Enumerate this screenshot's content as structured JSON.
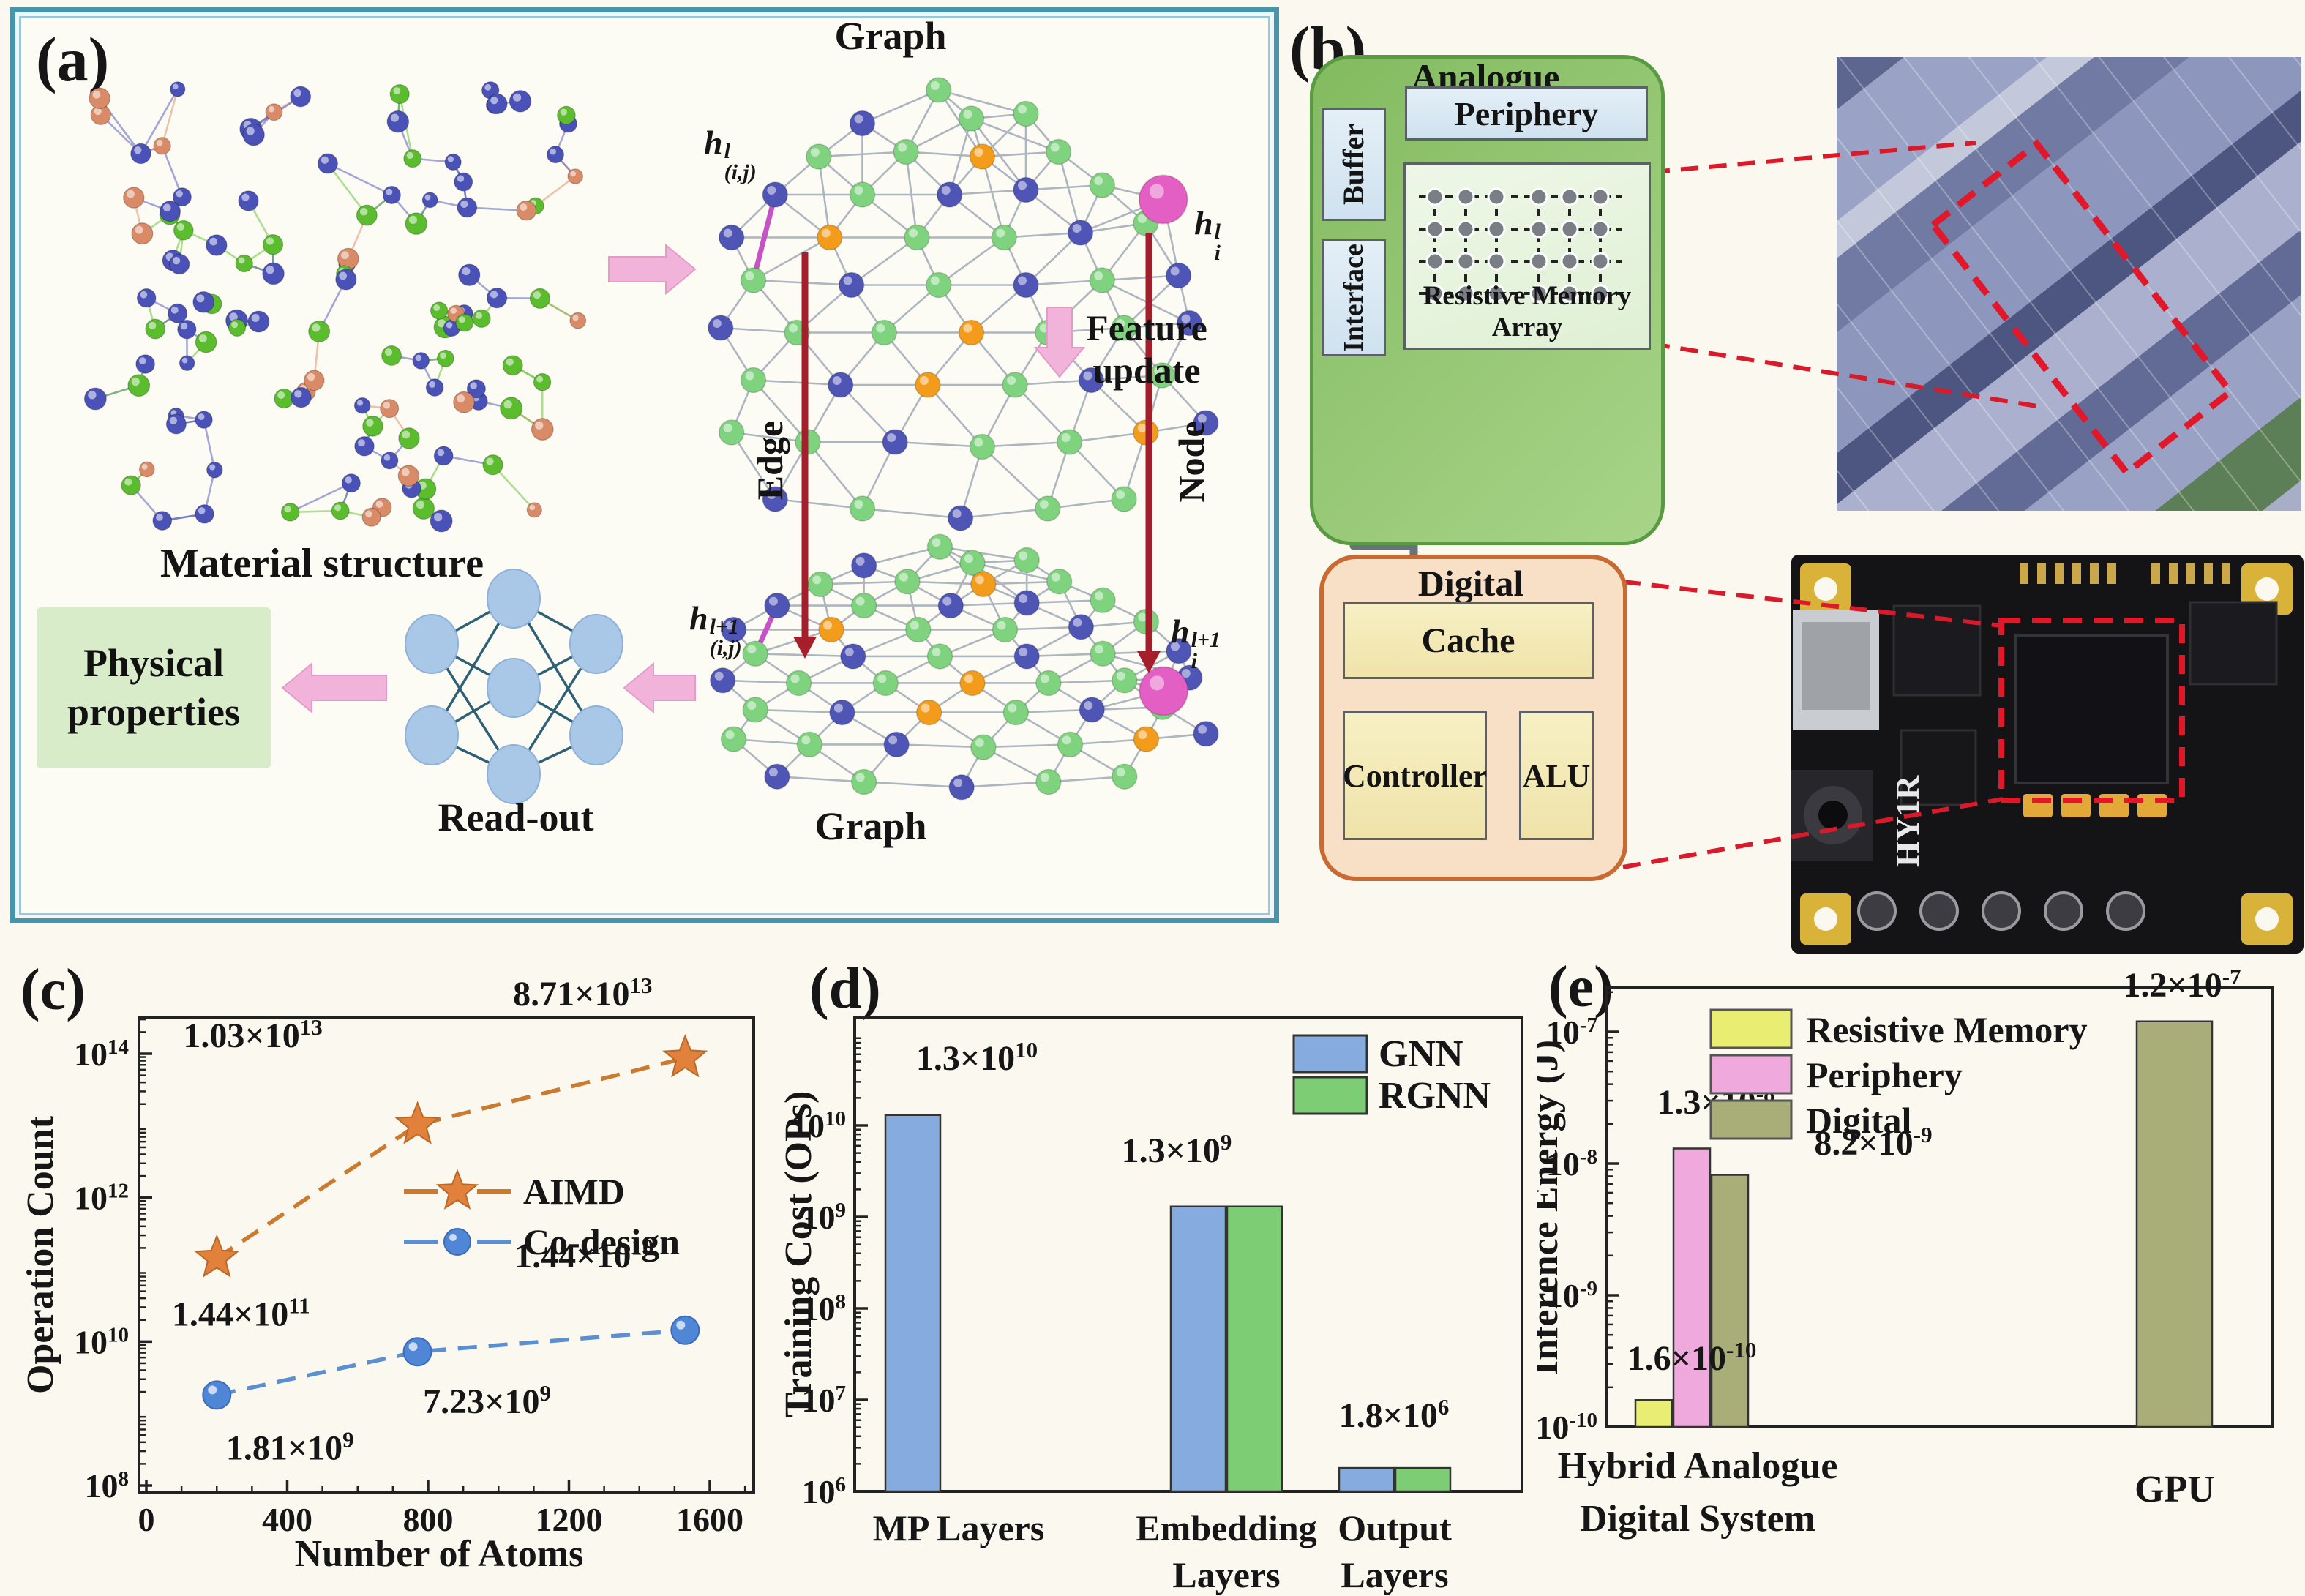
{
  "colors": {
    "panel_border": "#4795ad",
    "pink_arrow": "#f2b3da",
    "red_connector": "#b5242b",
    "red_arrow": "#a41f2b",
    "red_dashed": "#d91a2a",
    "gray_arrow": "#68737e",
    "node_green": "#7fd37f",
    "node_blue": "#4f55b5",
    "node_orange": "#f39c1c",
    "node_pink": "#e35fc4",
    "atom_blue": "#4a52b8",
    "atom_green": "#5bbd2e",
    "atom_salmon": "#d98a66",
    "cluster_edge": "#adb6c0",
    "magenta_edge": "#c653c6",
    "nn_node": "#a9c7e6",
    "nn_edge": "#2e6076"
  },
  "panel_a": {
    "label": "(a)",
    "material_caption": "Material structure",
    "graph_top_caption": "Graph",
    "graph_bottom_caption": "Graph",
    "edge_label": "Edge",
    "node_label": "Node",
    "feature_update_line1": "Feature",
    "feature_update_line2": "update",
    "readout_caption": "Read-out",
    "physical_line1": "Physical",
    "physical_line2": "properties",
    "h_labels": {
      "edge_top": {
        "base": "h",
        "sup": "l",
        "sub": "(i,j)"
      },
      "node_top": {
        "base": "h",
        "sup": "l",
        "sub": "i"
      },
      "edge_bottom": {
        "base": "h",
        "sup": "l+1",
        "sub": "(i,j)"
      },
      "node_bottom": {
        "base": "h",
        "sup": "l+1",
        "sub": "i"
      }
    }
  },
  "panel_b": {
    "label": "(b)",
    "analogue_title": "Analogue",
    "periphery": "Periphery",
    "buffer": "Buffer",
    "interface": "Interface",
    "array_caption": "Resistive Memory Array",
    "digital_title": "Digital",
    "cache": "Cache",
    "controller": "Controller",
    "alu": "ALU",
    "board_text": "HY1R"
  },
  "chart_data": [
    {
      "id": "c",
      "type": "scatter",
      "panel_label": "(c)",
      "xlabel": "Number of Atoms",
      "ylabel": "Operation Count",
      "x_ticks": [
        0,
        400,
        800,
        1200,
        1600
      ],
      "x_minor_step": 100,
      "xlim": [
        0,
        1725
      ],
      "y_ticks": [
        "10^8",
        "10^10",
        "10^12",
        "10^14"
      ],
      "ylog_range": [
        8,
        14.6
      ],
      "grid": false,
      "legend_position": "center-right",
      "series": [
        {
          "name": "AIMD",
          "marker": "star",
          "color": "#e2813b",
          "line_color": "#cc7a2e",
          "x": [
            200,
            770,
            1530
          ],
          "y": [
            144000000000.0,
            10300000000000.0,
            87100000000000.0
          ],
          "point_labels": [
            "1.44×10^11",
            "1.03×10^13",
            "8.71×10^13"
          ]
        },
        {
          "name": "Co-design",
          "marker": "circle",
          "color": "#4f86d6",
          "line_color": "#5b8fd0",
          "x": [
            200,
            770,
            1530
          ],
          "y": [
            1810000000.0,
            7230000000.0,
            14400000000.0
          ],
          "point_labels": [
            "1.81×10^9",
            "7.23×10^9",
            "1.44×10^10"
          ]
        }
      ]
    },
    {
      "id": "d",
      "type": "bar",
      "panel_label": "(d)",
      "ylabel": "Training Cost (OPs)",
      "categories": [
        [
          "MP Layers"
        ],
        [
          "Embedding",
          "Layers"
        ],
        [
          "Output",
          "Layers"
        ]
      ],
      "y_ticks": [
        "10^6",
        "10^7",
        "10^8",
        "10^9",
        "10^10"
      ],
      "ylog_range": [
        6,
        11.2
      ],
      "grid": false,
      "legend_position": "top-right",
      "series": [
        {
          "name": "GNN",
          "color": "#85abdf",
          "values": [
            13000000000.0,
            1300000000.0,
            1800000.0
          ]
        },
        {
          "name": "RGNN",
          "color": "#7ccd73",
          "values": [
            null,
            1300000000.0,
            1800000.0
          ]
        }
      ],
      "bar_labels": [
        "1.3×10^10",
        "1.3×10^9",
        "1.8×10^6"
      ]
    },
    {
      "id": "e",
      "type": "bar",
      "panel_label": "(e)",
      "ylabel": "Inference Energy (J)",
      "categories": [
        [
          "Hybrid Analogue",
          "Digital System"
        ],
        [
          "GPU"
        ]
      ],
      "y_ticks": [
        "10^-10",
        "10^-9",
        "10^-8",
        "10^-7"
      ],
      "ylog_range": [
        -10,
        -6.65
      ],
      "grid": false,
      "legend_position": "top-left",
      "series": [
        {
          "name": "Resistive Memory",
          "color": "#e9ee72",
          "values": [
            1.6e-10,
            null
          ]
        },
        {
          "name": "Periphery",
          "color": "#efa9dd",
          "values": [
            1.3e-08,
            null
          ]
        },
        {
          "name": "Digital",
          "color": "#a9ad77",
          "values": [
            8.2e-09,
            1.2e-07
          ]
        }
      ],
      "bar_labels": [
        "1.6×10^-10",
        "1.3×10^-8",
        "8.2×10^-9",
        "1.2×10^-7"
      ]
    }
  ]
}
